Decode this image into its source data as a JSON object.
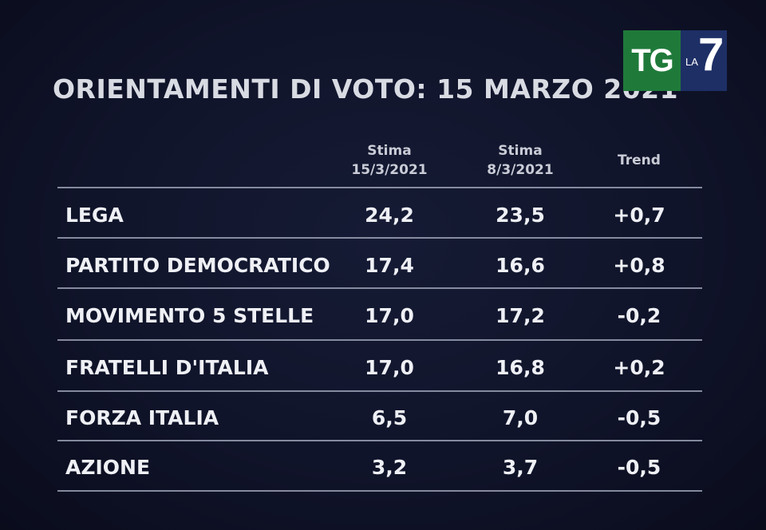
{
  "title": "ORIENTAMENTI DI VOTO: 15 MARZO 2021",
  "logo": {
    "tg": "TG",
    "la": "LA",
    "seven": "7"
  },
  "columns": {
    "current": {
      "line1": "Stima",
      "line2": "15/3/2021"
    },
    "previous": {
      "line1": "Stima",
      "line2": "8/3/2021"
    },
    "trend": "Trend"
  },
  "rows": [
    {
      "party": "LEGA",
      "current": "24,2",
      "previous": "23,5",
      "trend": "+0,7"
    },
    {
      "party": "PARTITO DEMOCRATICO",
      "current": "17,4",
      "previous": "16,6",
      "trend": "+0,8"
    },
    {
      "party": "MOVIMENTO 5 STELLE",
      "current": "17,0",
      "previous": "17,2",
      "trend": "-0,2"
    },
    {
      "party": "FRATELLI D'ITALIA",
      "current": "17,0",
      "previous": "16,8",
      "trend": "+0,2"
    },
    {
      "party": "FORZA ITALIA",
      "current": "6,5",
      "previous": "7,0",
      "trend": "-0,5"
    },
    {
      "party": "AZIONE",
      "current": "3,2",
      "previous": "3,7",
      "trend": "-0,5"
    }
  ],
  "colors": {
    "background": "#10142a",
    "tg_green": "#1f7a3a",
    "la7_blue": "#1e2f66",
    "rule": "#9aa0b4"
  }
}
